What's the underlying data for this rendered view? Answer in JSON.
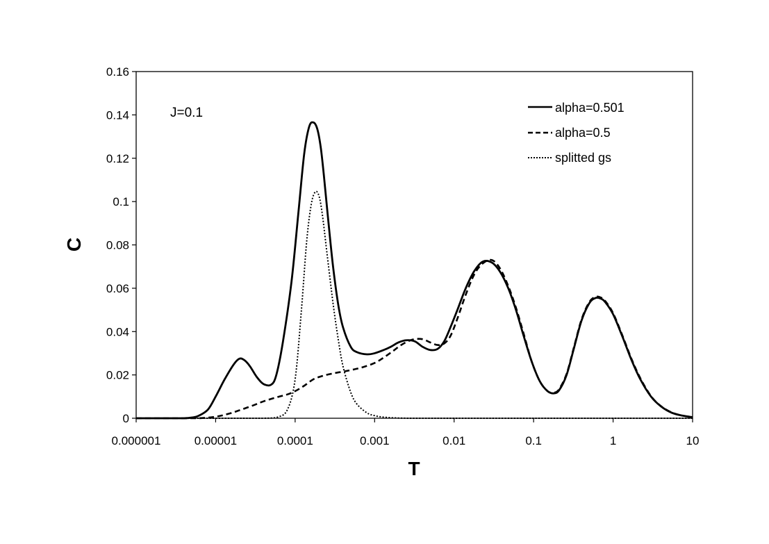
{
  "chart_data": {
    "type": "line",
    "title": "",
    "xlabel": "T",
    "ylabel": "C",
    "x_scale": "log",
    "xlim": [
      1e-06,
      10
    ],
    "ylim": [
      0,
      0.16
    ],
    "grid": false,
    "legend_position": "top-right",
    "annotation": "J=0.1",
    "x_tick_labels": [
      "0.000001",
      "0.00001",
      "0.0001",
      "0.001",
      "0.01",
      "0.1",
      "1",
      "10"
    ],
    "x_ticks": [
      1e-06,
      1e-05,
      0.0001,
      0.001,
      0.01,
      0.1,
      1,
      10
    ],
    "y_tick_labels": [
      "0",
      "0.02",
      "0.04",
      "0.06",
      "0.08",
      "0.1",
      "0.12",
      "0.14",
      "0.16"
    ],
    "y_ticks": [
      0,
      0.02,
      0.04,
      0.06,
      0.08,
      0.1,
      0.12,
      0.14,
      0.16
    ],
    "series": [
      {
        "name": "alpha=0.501",
        "style": "solid",
        "x": [
          1e-06,
          2e-06,
          3e-06,
          4e-06,
          5e-06,
          6e-06,
          8e-06,
          1e-05,
          1.3e-05,
          1.7e-05,
          2e-05,
          2.3e-05,
          2.7e-05,
          3.3e-05,
          4e-05,
          5e-05,
          5.8e-05,
          7e-05,
          9e-05,
          0.00011,
          0.00013,
          0.00015,
          0.00017,
          0.00019,
          0.00021,
          0.00023,
          0.00026,
          0.0003,
          0.00035,
          0.0004,
          0.0005,
          0.0006,
          0.0008,
          0.001,
          0.0013,
          0.0016,
          0.002,
          0.0025,
          0.0032,
          0.004,
          0.005,
          0.0062,
          0.0075,
          0.009,
          0.011,
          0.014,
          0.018,
          0.023,
          0.03,
          0.038,
          0.048,
          0.06,
          0.075,
          0.095,
          0.12,
          0.15,
          0.18,
          0.21,
          0.26,
          0.32,
          0.4,
          0.5,
          0.6,
          0.7,
          0.8,
          1.0,
          1.3,
          1.7,
          2.2,
          3.0,
          4.0,
          5.5,
          7.5,
          10
        ],
        "y": [
          0,
          0,
          0,
          0,
          0.0003,
          0.001,
          0.004,
          0.01,
          0.018,
          0.025,
          0.0275,
          0.0268,
          0.024,
          0.019,
          0.0158,
          0.0155,
          0.02,
          0.035,
          0.063,
          0.095,
          0.122,
          0.1345,
          0.1365,
          0.1335,
          0.125,
          0.112,
          0.092,
          0.07,
          0.052,
          0.042,
          0.033,
          0.0305,
          0.0295,
          0.03,
          0.0315,
          0.033,
          0.035,
          0.036,
          0.0355,
          0.033,
          0.0315,
          0.032,
          0.0355,
          0.042,
          0.05,
          0.06,
          0.068,
          0.0723,
          0.0718,
          0.0675,
          0.06,
          0.05,
          0.038,
          0.026,
          0.017,
          0.0125,
          0.0115,
          0.013,
          0.02,
          0.032,
          0.045,
          0.053,
          0.0555,
          0.0552,
          0.0535,
          0.048,
          0.038,
          0.027,
          0.018,
          0.01,
          0.0055,
          0.0025,
          0.0012,
          0.0005
        ]
      },
      {
        "name": "alpha=0.5",
        "style": "dashed",
        "x": [
          1e-06,
          3e-06,
          6e-06,
          1e-05,
          1.5e-05,
          2e-05,
          3e-05,
          4e-05,
          6e-05,
          8e-05,
          0.0001,
          0.00013,
          0.00017,
          0.00022,
          0.0003,
          0.0004,
          0.0005,
          0.0007,
          0.001,
          0.0013,
          0.0017,
          0.0022,
          0.003,
          0.004,
          0.005,
          0.0062,
          0.0075,
          0.009,
          0.011,
          0.014,
          0.018,
          0.023,
          0.03,
          0.038,
          0.048,
          0.06,
          0.075,
          0.095,
          0.12,
          0.15,
          0.18,
          0.21,
          0.26,
          0.32,
          0.4,
          0.5,
          0.6,
          0.7,
          0.8,
          1.0,
          1.3,
          1.7,
          2.2,
          3.0,
          4.0,
          5.5,
          7.5,
          10
        ],
        "y": [
          0,
          0,
          0,
          0.0007,
          0.0022,
          0.0037,
          0.006,
          0.0078,
          0.0098,
          0.011,
          0.0125,
          0.015,
          0.018,
          0.0195,
          0.0207,
          0.0215,
          0.0222,
          0.0235,
          0.0255,
          0.028,
          0.031,
          0.034,
          0.0363,
          0.0365,
          0.035,
          0.0338,
          0.0345,
          0.038,
          0.046,
          0.057,
          0.0665,
          0.0715,
          0.073,
          0.069,
          0.061,
          0.051,
          0.039,
          0.026,
          0.017,
          0.0125,
          0.0118,
          0.0135,
          0.0205,
          0.0325,
          0.0455,
          0.0535,
          0.056,
          0.0557,
          0.054,
          0.0485,
          0.0385,
          0.0275,
          0.0185,
          0.0102,
          0.0056,
          0.0026,
          0.0012,
          0.0005
        ]
      },
      {
        "name": "splitted gs",
        "style": "dotted",
        "x": [
          1e-06,
          2e-05,
          4e-05,
          6e-05,
          8e-05,
          0.0001,
          0.00012,
          0.00014,
          0.00016,
          0.00018,
          0.0002,
          0.00022,
          0.00025,
          0.0003,
          0.00035,
          0.0004,
          0.0005,
          0.0006,
          0.0008,
          0.001,
          0.0013,
          0.002,
          0.003,
          0.005,
          0.01,
          0.1,
          1,
          10
        ],
        "y": [
          0,
          0,
          0,
          0.0005,
          0.004,
          0.018,
          0.05,
          0.082,
          0.099,
          0.1045,
          0.1025,
          0.094,
          0.077,
          0.053,
          0.036,
          0.024,
          0.012,
          0.0065,
          0.0025,
          0.0012,
          0.0005,
          0.0001,
          0,
          0,
          0,
          0,
          0,
          0
        ]
      }
    ]
  }
}
